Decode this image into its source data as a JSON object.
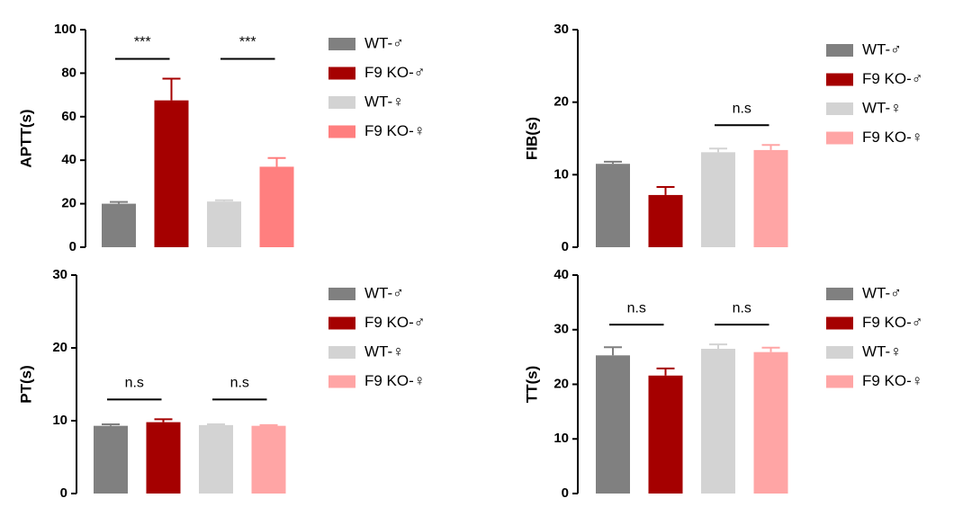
{
  "chart_data": [
    {
      "type": "bar",
      "y_label": "APTT(s)",
      "ylim": [
        0,
        100
      ],
      "yticks": [
        0,
        20,
        40,
        60,
        80,
        100
      ],
      "series": [
        {
          "name": "WT-♂",
          "color": "#808080",
          "values": [
            20
          ],
          "errors": [
            0.8
          ]
        },
        {
          "name": "F9 KO-♂",
          "color": "#a50000",
          "values": [
            67.5
          ],
          "errors": [
            10
          ]
        },
        {
          "name": "WT-♀",
          "color": "#d3d3d3",
          "values": [
            21
          ],
          "errors": [
            0.6
          ]
        },
        {
          "name": "F9 KO-♀",
          "color": "#ff7f7f",
          "values": [
            37
          ],
          "errors": [
            4
          ]
        }
      ],
      "annotations": [
        "***",
        "***"
      ]
    },
    {
      "type": "bar",
      "y_label": "FIB(s)",
      "ylim": [
        0,
        30
      ],
      "yticks": [
        0,
        10,
        20,
        30
      ],
      "series": [
        {
          "name": "WT-♂",
          "color": "#808080",
          "values": [
            11.5
          ],
          "errors": [
            0.3
          ]
        },
        {
          "name": "F9 KO-♂",
          "color": "#a50000",
          "values": [
            7.2
          ],
          "errors": [
            1.1
          ]
        },
        {
          "name": "WT-♀",
          "color": "#d3d3d3",
          "values": [
            13.1
          ],
          "errors": [
            0.5
          ]
        },
        {
          "name": "F9 KO-♀",
          "color": "#ffa5a5",
          "values": [
            13.4
          ],
          "errors": [
            0.7
          ]
        }
      ],
      "annotations": [
        null,
        "n.s"
      ]
    },
    {
      "type": "bar",
      "y_label": "PT(s)",
      "ylim": [
        0,
        30
      ],
      "yticks": [
        0,
        10,
        20,
        30
      ],
      "series": [
        {
          "name": "WT-♂",
          "color": "#808080",
          "values": [
            9.3
          ],
          "errors": [
            0.2
          ]
        },
        {
          "name": "F9 KO-♂",
          "color": "#a50000",
          "values": [
            9.8
          ],
          "errors": [
            0.4
          ]
        },
        {
          "name": "WT-♀",
          "color": "#d3d3d3",
          "values": [
            9.4
          ],
          "errors": [
            0.1
          ]
        },
        {
          "name": "F9 KO-♀",
          "color": "#ffa5a5",
          "values": [
            9.3
          ],
          "errors": [
            0.1
          ]
        }
      ],
      "annotations": [
        "n.s",
        "n.s"
      ]
    },
    {
      "type": "bar",
      "y_label": "TT(s)",
      "ylim": [
        0,
        40
      ],
      "yticks": [
        0,
        10,
        20,
        30,
        40
      ],
      "series": [
        {
          "name": "WT-♂",
          "color": "#808080",
          "values": [
            25.3
          ],
          "errors": [
            1.5
          ]
        },
        {
          "name": "F9 KO-♂",
          "color": "#a50000",
          "values": [
            21.6
          ],
          "errors": [
            1.3
          ]
        },
        {
          "name": "WT-♀",
          "color": "#d3d3d3",
          "values": [
            26.5
          ],
          "errors": [
            0.8
          ]
        },
        {
          "name": "F9 KO-♀",
          "color": "#ffa5a5",
          "values": [
            25.9
          ],
          "errors": [
            0.8
          ]
        }
      ],
      "annotations": [
        "n.s",
        "n.s"
      ]
    }
  ]
}
